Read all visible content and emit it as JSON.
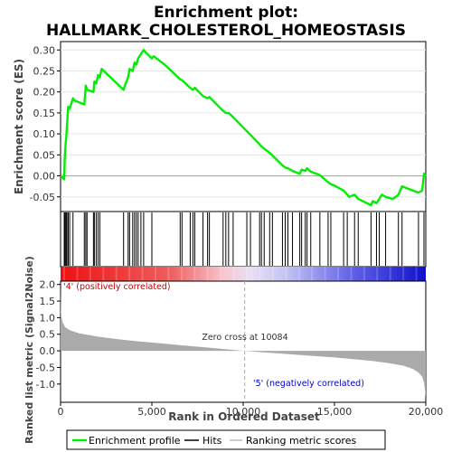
{
  "title_line1": "Enrichment plot:",
  "title_line2": "HALLMARK_CHOLESTEROL_HOMEOSTASIS",
  "colors": {
    "enrichment": "#00ee00",
    "hits": "#000000",
    "metric": "#aaaaaa",
    "pos_label": "#cc0000",
    "neg_label": "#0000cc",
    "zero_line": "#aaaaaa"
  },
  "legend": {
    "enrichment_profile": "Enrichment profile",
    "hits": "Hits",
    "ranking_metric": "Ranking metric scores"
  },
  "chart_data": [
    {
      "type": "line",
      "name": "enrichment-profile",
      "ylabel": "Enrichment score (ES)",
      "xlim": [
        0,
        20000
      ],
      "ylim": [
        -0.085,
        0.32
      ],
      "yticks": [
        -0.05,
        0.0,
        0.05,
        0.1,
        0.15,
        0.2,
        0.25,
        0.3
      ],
      "ytick_labels": [
        "-0.05",
        "0.00",
        "0.05",
        "0.10",
        "0.15",
        "0.20",
        "0.25",
        "0.30"
      ],
      "grid": true,
      "x": [
        0,
        200,
        230,
        280,
        300,
        350,
        420,
        500,
        680,
        750,
        1300,
        1380,
        1450,
        1800,
        1850,
        1950,
        2050,
        2150,
        2250,
        3450,
        3520,
        3700,
        3780,
        3950,
        4050,
        4150,
        4250,
        4400,
        4550,
        4650,
        5000,
        5100,
        5700,
        6550,
        6650,
        7100,
        7250,
        7350,
        7800,
        8050,
        8150,
        8900,
        9050,
        9200,
        9450,
        10900,
        11000,
        11150,
        11450,
        12150,
        12300,
        12450,
        12700,
        13100,
        13200,
        13400,
        13500,
        13700,
        14200,
        14650,
        14800,
        14950,
        15500,
        15700,
        15800,
        16100,
        16300,
        17000,
        17100,
        17300,
        17450,
        17600,
        17800,
        18200,
        18500,
        18700,
        19600,
        19800,
        19900,
        20000
      ],
      "y": [
        0.0,
        -0.008,
        0.04,
        0.08,
        0.085,
        0.12,
        0.165,
        0.16,
        0.185,
        0.18,
        0.17,
        0.215,
        0.205,
        0.2,
        0.225,
        0.22,
        0.24,
        0.235,
        0.255,
        0.205,
        0.215,
        0.235,
        0.255,
        0.25,
        0.27,
        0.265,
        0.28,
        0.29,
        0.3,
        0.295,
        0.28,
        0.285,
        0.265,
        0.23,
        0.228,
        0.21,
        0.205,
        0.21,
        0.19,
        0.185,
        0.188,
        0.155,
        0.15,
        0.15,
        0.14,
        0.075,
        0.07,
        0.065,
        0.055,
        0.025,
        0.02,
        0.018,
        0.012,
        0.005,
        0.015,
        0.012,
        0.018,
        0.01,
        0.002,
        -0.015,
        -0.02,
        -0.022,
        -0.035,
        -0.045,
        -0.05,
        -0.045,
        -0.055,
        -0.07,
        -0.06,
        -0.065,
        -0.055,
        -0.045,
        -0.05,
        -0.055,
        -0.045,
        -0.025,
        -0.04,
        -0.035,
        0.005,
        0.0
      ]
    },
    {
      "type": "scatter",
      "name": "hits",
      "xlim": [
        0,
        20000
      ],
      "x": [
        200,
        230,
        280,
        300,
        350,
        420,
        500,
        680,
        1300,
        1380,
        1450,
        1800,
        1850,
        1950,
        2050,
        2150,
        3450,
        3700,
        3780,
        3950,
        4050,
        4150,
        4250,
        4400,
        4550,
        5000,
        6550,
        6650,
        7100,
        7250,
        7350,
        7800,
        8050,
        8150,
        8900,
        9050,
        9200,
        9450,
        10200,
        10400,
        10900,
        11000,
        11150,
        11450,
        11600,
        12150,
        12300,
        12450,
        12700,
        13100,
        13200,
        13400,
        13500,
        13700,
        14200,
        14650,
        14800,
        15500,
        15700,
        16100,
        16300,
        17000,
        17300,
        17450,
        17800,
        18500,
        18700,
        19600,
        19900
      ]
    },
    {
      "type": "area",
      "name": "ranking-metric",
      "ylabel": "Ranked list metric (Signal2Noise)",
      "xlabel": "Rank in Ordered Dataset",
      "xlim": [
        0,
        20000
      ],
      "ylim": [
        -1.55,
        2.1
      ],
      "yticks": [
        -1.0,
        -0.5,
        0.0,
        0.5,
        1.0,
        1.5,
        2.0
      ],
      "ytick_labels": [
        "-1.0",
        "-0.5",
        "0.0",
        "0.5",
        "1.0",
        "1.5",
        "2.0"
      ],
      "xticks": [
        0,
        5000,
        10000,
        15000,
        20000
      ],
      "xtick_labels": [
        "0",
        "5,000",
        "10,000",
        "15,000",
        "20,000"
      ],
      "x": [
        0,
        20,
        60,
        120,
        250,
        500,
        1000,
        2000,
        3000,
        4000,
        5000,
        6000,
        7000,
        8000,
        9000,
        10084,
        11000,
        12000,
        13000,
        14000,
        15000,
        16000,
        17000,
        18000,
        18800,
        19300,
        19600,
        19800,
        19900,
        19960,
        20000
      ],
      "values": [
        2.0,
        1.2,
        1.0,
        0.85,
        0.72,
        0.62,
        0.53,
        0.43,
        0.36,
        0.3,
        0.25,
        0.2,
        0.15,
        0.1,
        0.05,
        0.0,
        -0.04,
        -0.08,
        -0.12,
        -0.16,
        -0.2,
        -0.25,
        -0.3,
        -0.37,
        -0.45,
        -0.55,
        -0.65,
        -0.78,
        -0.95,
        -1.2,
        -1.4
      ],
      "zero_cross_label": "Zero cross at 10084",
      "pos_label": "'4' (positively correlated)",
      "neg_label": "'5' (negatively correlated)"
    }
  ]
}
